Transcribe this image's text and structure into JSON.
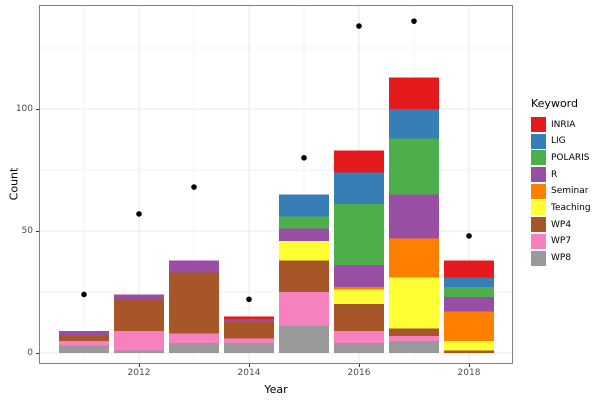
{
  "chart_data": {
    "type": "bar",
    "subtype": "stacked-bars-with-scatter-points",
    "title": "",
    "xlabel": "Year",
    "ylabel": "Count",
    "legend_title": "Keyword",
    "legend_position": "right",
    "grid": true,
    "background": "#ffffff",
    "panel_border_color": "#808080",
    "categories": [
      2011,
      2012,
      2013,
      2014,
      2015,
      2016,
      2017,
      2018
    ],
    "x_ticks": [
      "2012",
      "2014",
      "2016",
      "2018"
    ],
    "y_ticks": [
      "0",
      "50",
      "100"
    ],
    "y_minor_gridlines": [
      25,
      75,
      125
    ],
    "ylim": [
      0,
      140
    ],
    "series": [
      {
        "name": "INRIA",
        "color": "#e41a1c",
        "values": [
          0,
          0,
          0,
          1,
          0,
          9,
          13,
          7
        ]
      },
      {
        "name": "LIG",
        "color": "#377eb8",
        "values": [
          0,
          0,
          0,
          0,
          9,
          13,
          12,
          4
        ]
      },
      {
        "name": "POLARIS",
        "color": "#4daf4a",
        "values": [
          0,
          0,
          0,
          0,
          5,
          25,
          23,
          4
        ]
      },
      {
        "name": "R",
        "color": "#984ea3",
        "values": [
          2,
          2,
          5,
          1,
          5,
          9,
          18,
          6
        ]
      },
      {
        "name": "Seminar",
        "color": "#ff7f00",
        "values": [
          0,
          0,
          0,
          0,
          0,
          1,
          16,
          12
        ]
      },
      {
        "name": "Teaching",
        "color": "#ffff33",
        "values": [
          0,
          0,
          0,
          0,
          8,
          6,
          21,
          4
        ]
      },
      {
        "name": "WP4",
        "color": "#a65628",
        "values": [
          2,
          13,
          25,
          7,
          13,
          11,
          3,
          1
        ]
      },
      {
        "name": "WP7",
        "color": "#f781bf",
        "values": [
          2,
          8,
          4,
          2,
          14,
          5,
          2,
          0
        ]
      },
      {
        "name": "WP8",
        "color": "#999999",
        "values": [
          3,
          1,
          4,
          4,
          11,
          4,
          5,
          0
        ]
      }
    ],
    "stack_order_bottom_to_top": [
      "WP8",
      "WP7",
      "WP4",
      "Teaching",
      "Seminar",
      "R",
      "POLARIS",
      "LIG",
      "INRIA"
    ],
    "bar_totals": [
      9,
      24,
      38,
      15,
      65,
      83,
      113,
      38
    ],
    "points": {
      "name": "total-markers",
      "color": "#000000",
      "values": [
        24,
        57,
        68,
        22,
        80,
        134,
        136,
        48
      ]
    }
  }
}
